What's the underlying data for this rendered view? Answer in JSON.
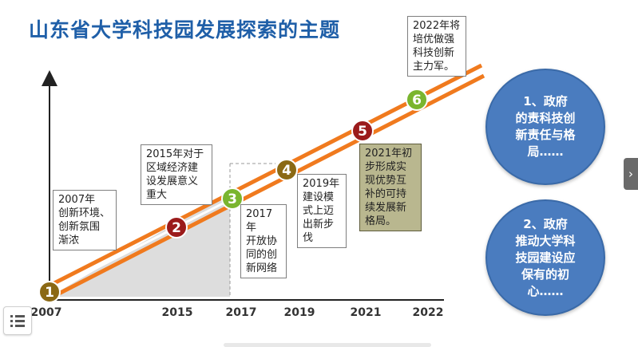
{
  "title": "山东省大学科技园发展探索的主题",
  "years": [
    "2007",
    "2015",
    "2017",
    "2019",
    "2021",
    "2022"
  ],
  "milestones": [
    "1",
    "2",
    "3",
    "4",
    "5",
    "6"
  ],
  "milestone_colors": [
    "#8b6914",
    "#9b1b1b",
    "#7ab52f",
    "#8b6914",
    "#9b1b1b",
    "#7ab52f"
  ],
  "notes": {
    "n2007": [
      "2007年",
      "创新环境、",
      "创新氛围",
      "渐浓"
    ],
    "n2015": [
      "2015年对于",
      "区域经济建",
      "设发展意义",
      "重大"
    ],
    "n2017": [
      "2017年",
      "开放协",
      "同的创",
      "新网络"
    ],
    "n2019": [
      "2019年",
      "建设模",
      "式上迈",
      "出新步",
      "伐"
    ],
    "n2021": [
      "2021年初",
      "步形成实",
      "现优势互",
      "补的可持",
      "续发展新",
      "格局。"
    ],
    "n2022": [
      "2022年将",
      "培优做强",
      "科技创新",
      "主力军。"
    ]
  },
  "circles": {
    "c1": [
      "1、政府",
      "的责科技创",
      "新责任与格",
      "局……"
    ],
    "c2": [
      "2、政府",
      "推动大学科",
      "技园建设应",
      "保有的初",
      "心……"
    ]
  },
  "nav": {
    "next_glyph": "›",
    "menu_icon": "list-icon"
  }
}
